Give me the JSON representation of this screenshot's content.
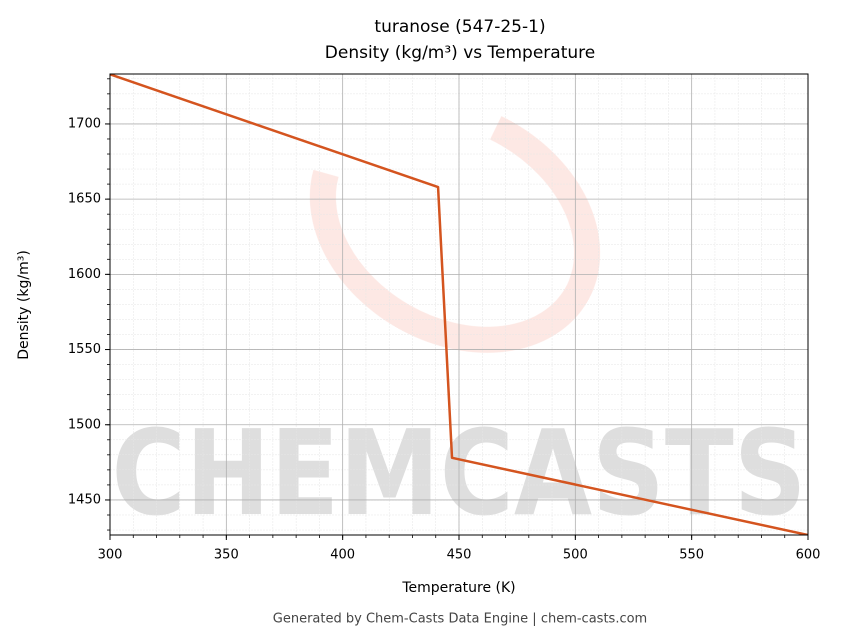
{
  "chart_data": {
    "type": "line",
    "title": "turanose (547-25-1)",
    "subtitle": "Density (kg/m³) vs Temperature",
    "x_label": "Temperature (K)",
    "y_label": "Density (kg/m³)",
    "footer": "Generated by Chem-Casts Data Engine | chem-casts.com",
    "watermark": "CHEMCASTS",
    "x": [
      300,
      441,
      447,
      600
    ],
    "series": [
      {
        "name": "Density",
        "color": "#d4541f",
        "values": [
          1733,
          1658,
          1478,
          1426.7
        ]
      }
    ],
    "xlim": [
      300,
      600
    ],
    "xticks": [
      300,
      350,
      400,
      450,
      500,
      550,
      600
    ],
    "ylim": [
      1426.7,
      1733.2
    ],
    "yticks": [
      1450,
      1500,
      1550,
      1600,
      1650,
      1700
    ],
    "grid": true
  }
}
